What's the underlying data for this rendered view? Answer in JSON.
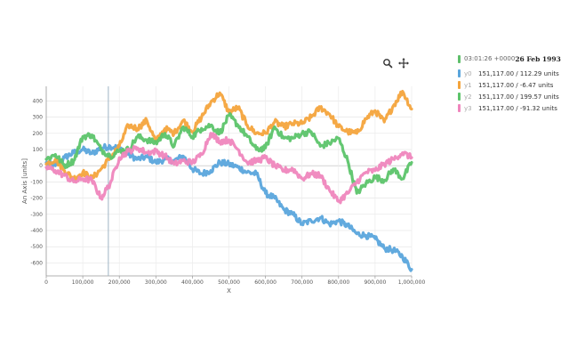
{
  "toolbar": {
    "zoom_icon": "search-icon",
    "pan_icon": "move-icon"
  },
  "legend": {
    "time": "03:01:26 +0000",
    "date": "26 Feb 1993",
    "head_color": "#5fbf6b",
    "items": [
      {
        "name": "y0",
        "value": "151,117.00 / 112.29 units",
        "color": "#5aa5dc"
      },
      {
        "name": "y1",
        "value": "151,117.00 / -6.47 units",
        "color": "#f4a43c"
      },
      {
        "name": "y2",
        "value": "151,117.00 / 199.57 units",
        "color": "#5cc46a"
      },
      {
        "name": "y3",
        "value": "151,117.00 / -91.32 units",
        "color": "#ef86bd"
      }
    ]
  },
  "chart_data": {
    "type": "line",
    "xlabel": "X",
    "ylabel": "An Axis [units]",
    "xlim": [
      0,
      1000000
    ],
    "ylim": [
      -680,
      490
    ],
    "x_ticks": [
      0,
      100000,
      200000,
      300000,
      400000,
      500000,
      600000,
      700000,
      800000,
      900000,
      1000000
    ],
    "x_tick_labels": [
      "0",
      "100,000",
      "200,000",
      "300,000",
      "400,000",
      "500,000",
      "600,000",
      "700,000",
      "800,000",
      "900,000",
      "1,000,000"
    ],
    "y_ticks": [
      400,
      300,
      200,
      100,
      0,
      -100,
      -200,
      -300,
      -400,
      -500,
      -600
    ],
    "y_tick_labels": [
      "400",
      "300",
      "200",
      "100",
      "0",
      "-100",
      "-200",
      "-300",
      "-400",
      "-500",
      "-600"
    ],
    "grid": true,
    "cursor_x": 170000,
    "x": [
      0,
      25000,
      50000,
      75000,
      100000,
      125000,
      150000,
      175000,
      200000,
      225000,
      250000,
      275000,
      300000,
      325000,
      350000,
      375000,
      400000,
      425000,
      450000,
      475000,
      500000,
      525000,
      550000,
      575000,
      600000,
      625000,
      650000,
      675000,
      700000,
      725000,
      750000,
      775000,
      800000,
      825000,
      850000,
      875000,
      900000,
      925000,
      950000,
      975000,
      1000000
    ],
    "series": [
      {
        "name": "y0",
        "color": "#5aa5dc",
        "values": [
          20,
          0,
          50,
          80,
          100,
          75,
          110,
          120,
          110,
          70,
          40,
          55,
          20,
          40,
          30,
          60,
          -20,
          -50,
          -30,
          20,
          10,
          -10,
          -40,
          -50,
          -170,
          -200,
          -270,
          -300,
          -360,
          -340,
          -320,
          -360,
          -340,
          -370,
          -420,
          -430,
          -450,
          -510,
          -520,
          -560,
          -640
        ]
      },
      {
        "name": "y1",
        "color": "#f4a43c",
        "values": [
          10,
          40,
          -30,
          -80,
          -40,
          -80,
          -20,
          50,
          120,
          250,
          230,
          280,
          150,
          230,
          200,
          280,
          210,
          300,
          390,
          450,
          330,
          360,
          250,
          200,
          200,
          270,
          240,
          260,
          260,
          300,
          360,
          320,
          240,
          210,
          200,
          290,
          340,
          270,
          370,
          460,
          350
        ]
      },
      {
        "name": "y2",
        "color": "#5cc46a",
        "values": [
          40,
          70,
          0,
          30,
          180,
          190,
          100,
          60,
          90,
          100,
          180,
          160,
          140,
          200,
          120,
          240,
          180,
          230,
          250,
          200,
          310,
          250,
          180,
          100,
          110,
          240,
          170,
          170,
          200,
          210,
          120,
          140,
          170,
          30,
          -170,
          -110,
          -70,
          -90,
          -20,
          -80,
          20
        ]
      },
      {
        "name": "y3",
        "color": "#ef86bd",
        "values": [
          -10,
          -30,
          -60,
          -100,
          -80,
          -90,
          -200,
          -110,
          50,
          90,
          110,
          80,
          90,
          60,
          10,
          30,
          20,
          70,
          200,
          150,
          160,
          100,
          20,
          30,
          50,
          0,
          -30,
          -20,
          -80,
          -50,
          -60,
          -150,
          -220,
          -170,
          -100,
          -40,
          -30,
          10,
          40,
          80,
          50
        ]
      }
    ]
  }
}
